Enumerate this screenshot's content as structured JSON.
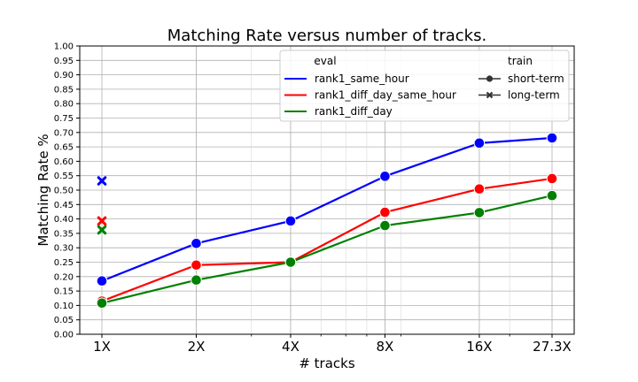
{
  "chart_data": {
    "type": "line",
    "title": "Matching Rate versus number of tracks.",
    "xlabel": "# tracks",
    "ylabel": "Matching Rate %",
    "x_scale": "log",
    "categories": [
      "1X",
      "2X",
      "4X",
      "8X",
      "16X",
      "27.3X"
    ],
    "x": [
      1,
      2,
      4,
      8,
      16,
      27.3
    ],
    "ylim": [
      0.0,
      1.0
    ],
    "yticks": [
      "0.00",
      "0.05",
      "0.10",
      "0.15",
      "0.20",
      "0.25",
      "0.30",
      "0.35",
      "0.40",
      "0.45",
      "0.50",
      "0.55",
      "0.60",
      "0.65",
      "0.70",
      "0.75",
      "0.80",
      "0.85",
      "0.90",
      "0.95",
      "1.00"
    ],
    "grid": true,
    "legend_position": "top-right",
    "legend": {
      "eval_title": "eval",
      "train_title": "train",
      "train_entries": [
        "short-term",
        "long-term"
      ]
    },
    "series": [
      {
        "name": "rank1_same_hour",
        "color": "#0000ff",
        "train": "short-term",
        "values": [
          0.185,
          0.315,
          0.393,
          0.548,
          0.663,
          0.681
        ]
      },
      {
        "name": "rank1_diff_day_same_hour",
        "color": "#ff0000",
        "train": "short-term",
        "values": [
          0.115,
          0.24,
          0.25,
          0.423,
          0.504,
          0.54
        ]
      },
      {
        "name": "rank1_diff_day",
        "color": "#008000",
        "train": "short-term",
        "values": [
          0.108,
          0.188,
          0.25,
          0.377,
          0.422,
          0.481
        ]
      }
    ],
    "long_term_points": [
      {
        "series": "rank1_same_hour",
        "color": "#0000ff",
        "x": 1,
        "y": 0.532
      },
      {
        "series": "rank1_diff_day_same_hour",
        "color": "#ff0000",
        "x": 1,
        "y": 0.393
      },
      {
        "series": "rank1_diff_day",
        "color": "#008000",
        "x": 1,
        "y": 0.362
      }
    ]
  }
}
